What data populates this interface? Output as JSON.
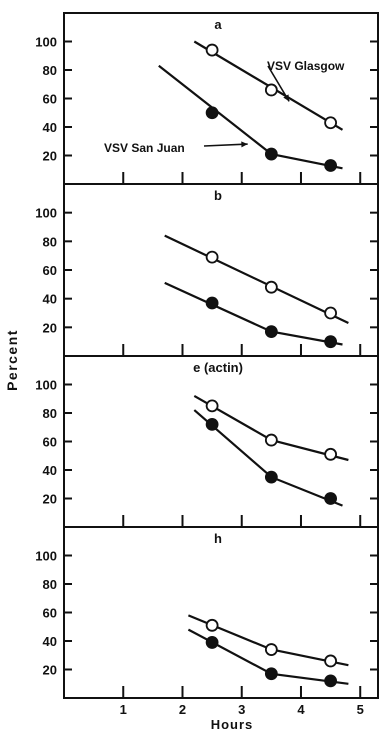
{
  "figure": {
    "ylabel": "Percent",
    "xlabel": "Hours",
    "x_ticks": [
      1,
      2,
      3,
      4,
      5
    ],
    "y_ticks": [
      20,
      40,
      60,
      80,
      100
    ]
  },
  "chart_data": [
    {
      "type": "line",
      "title": "a",
      "xlabel": "Hours",
      "ylabel": "Percent",
      "xlim": [
        0,
        5.3
      ],
      "ylim": [
        0,
        120
      ],
      "series": [
        {
          "name": "VSV Glasgow",
          "marker": "open-circle",
          "points": [
            [
              2.5,
              94
            ],
            [
              3.5,
              66
            ],
            [
              4.5,
              43
            ]
          ],
          "line": [
            [
              2.2,
              100
            ],
            [
              4.7,
              38
            ]
          ]
        },
        {
          "name": "VSV San Juan",
          "marker": "filled-circle",
          "points": [
            [
              2.5,
              50
            ],
            [
              3.5,
              21
            ],
            [
              4.5,
              13
            ]
          ],
          "line": [
            [
              1.6,
              83
            ],
            [
              3.5,
              21
            ],
            [
              4.7,
              11
            ]
          ]
        }
      ],
      "annotations": [
        {
          "text": "VSV Glasgow",
          "points_to": [
            3.8,
            58
          ]
        },
        {
          "text": "VSV San Juan",
          "points_to": [
            3.1,
            28
          ]
        }
      ]
    },
    {
      "type": "line",
      "title": "b",
      "xlabel": "Hours",
      "ylabel": "Percent",
      "xlim": [
        0,
        5.3
      ],
      "ylim": [
        0,
        120
      ],
      "series": [
        {
          "name": "",
          "marker": "open-circle",
          "points": [
            [
              2.5,
              69
            ],
            [
              3.5,
              48
            ],
            [
              4.5,
              30
            ]
          ],
          "line": [
            [
              1.7,
              84
            ],
            [
              4.8,
              23
            ]
          ]
        },
        {
          "name": "",
          "marker": "filled-circle",
          "points": [
            [
              2.5,
              37
            ],
            [
              3.5,
              17
            ],
            [
              4.5,
              10
            ]
          ],
          "line": [
            [
              1.7,
              51
            ],
            [
              3.5,
              17
            ],
            [
              4.7,
              8
            ]
          ]
        }
      ]
    },
    {
      "type": "line",
      "title": "e (actin)",
      "xlabel": "Hours",
      "ylabel": "Percent",
      "xlim": [
        0,
        5.3
      ],
      "ylim": [
        0,
        120
      ],
      "series": [
        {
          "name": "",
          "marker": "open-circle",
          "points": [
            [
              2.5,
              85
            ],
            [
              3.5,
              61
            ],
            [
              4.5,
              51
            ]
          ],
          "line": [
            [
              2.2,
              92
            ],
            [
              3.5,
              61
            ],
            [
              4.8,
              47
            ]
          ]
        },
        {
          "name": "",
          "marker": "filled-circle",
          "points": [
            [
              2.5,
              72
            ],
            [
              3.5,
              35
            ],
            [
              4.5,
              20
            ]
          ],
          "line": [
            [
              2.2,
              82
            ],
            [
              3.5,
              35
            ],
            [
              4.7,
              15
            ]
          ]
        }
      ]
    },
    {
      "type": "line",
      "title": "h",
      "xlabel": "Hours",
      "ylabel": "Percent",
      "xlim": [
        0,
        5.3
      ],
      "ylim": [
        0,
        120
      ],
      "series": [
        {
          "name": "",
          "marker": "open-circle",
          "points": [
            [
              2.5,
              51
            ],
            [
              3.5,
              34
            ],
            [
              4.5,
              26
            ]
          ],
          "line": [
            [
              2.1,
              58
            ],
            [
              3.5,
              34
            ],
            [
              4.8,
              23
            ]
          ]
        },
        {
          "name": "",
          "marker": "filled-circle",
          "points": [
            [
              2.5,
              39
            ],
            [
              3.5,
              17
            ],
            [
              4.5,
              12
            ]
          ],
          "line": [
            [
              2.1,
              48
            ],
            [
              3.5,
              17
            ],
            [
              4.8,
              10
            ]
          ]
        }
      ]
    }
  ]
}
